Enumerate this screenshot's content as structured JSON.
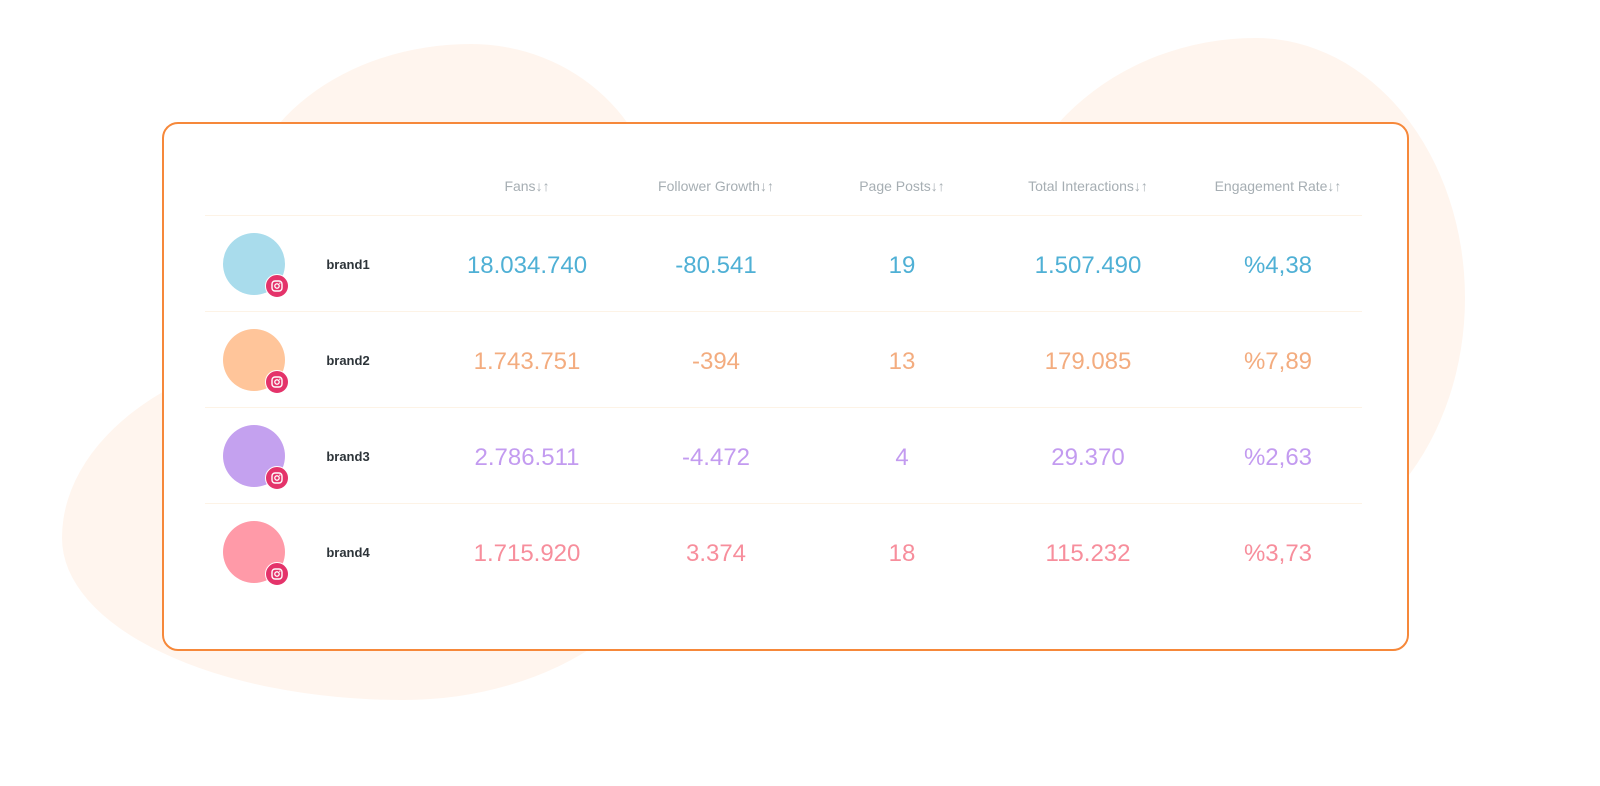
{
  "headers": [
    "Fans",
    "Follower Growth",
    "Page Posts",
    "Total Interactions",
    "Engagement Rate"
  ],
  "sort_icon": "↓↑",
  "rows": [
    {
      "brand": "brand1",
      "platform": "instagram-icon",
      "color": "#4fb0d5",
      "avatar_color": "#a9dcec",
      "values": [
        "18.034.740",
        "-80.541",
        "19",
        "1.507.490",
        "%4,38"
      ]
    },
    {
      "brand": "brand2",
      "platform": "instagram-icon",
      "color": "#f3ac7f",
      "avatar_color": "#ffc59a",
      "values": [
        "1.743.751",
        "-394",
        "13",
        "179.085",
        "%7,89"
      ]
    },
    {
      "brand": "brand3",
      "platform": "instagram-icon",
      "color": "#c39bf0",
      "avatar_color": "#c4a1ef",
      "values": [
        "2.786.511",
        "-4.472",
        "4",
        "29.370",
        "%2,63"
      ]
    },
    {
      "brand": "brand4",
      "platform": "instagram-icon",
      "color": "#f78e9c",
      "avatar_color": "#ff9aa8",
      "values": [
        "1.715.920",
        "3.374",
        "18",
        "115.232",
        "%3,73"
      ]
    }
  ]
}
